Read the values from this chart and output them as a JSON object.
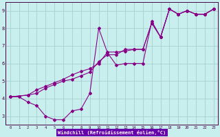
{
  "xlabel": "Windchill (Refroidissement éolien,°C)",
  "bg_color": "#c8eeee",
  "grid_color": "#a8d0d0",
  "line_color": "#880088",
  "xlim": [
    -0.5,
    23.5
  ],
  "ylim": [
    2.5,
    9.5
  ],
  "xticks": [
    0,
    1,
    2,
    3,
    4,
    5,
    6,
    7,
    8,
    9,
    10,
    11,
    12,
    13,
    14,
    15,
    16,
    17,
    18,
    19,
    20,
    21,
    22,
    23
  ],
  "yticks": [
    3,
    4,
    5,
    6,
    7,
    8,
    9
  ],
  "line1_x": [
    0,
    1,
    2,
    3,
    4,
    5,
    6,
    7,
    8,
    9,
    10,
    11,
    12,
    13,
    14,
    15,
    16,
    17,
    18,
    19,
    20,
    21,
    22,
    23
  ],
  "line1_y": [
    4.1,
    4.1,
    3.8,
    3.6,
    3.0,
    2.8,
    2.8,
    3.3,
    3.4,
    4.3,
    8.0,
    6.6,
    5.9,
    6.0,
    6.0,
    6.0,
    8.4,
    7.5,
    9.1,
    8.8,
    9.0,
    8.8,
    8.8,
    9.1
  ],
  "line2_x": [
    0,
    2,
    3,
    4,
    5,
    6,
    7,
    8,
    9,
    10,
    11,
    12,
    13,
    14,
    15,
    16,
    17,
    18,
    19,
    20,
    21,
    22,
    23
  ],
  "line2_y": [
    4.1,
    4.2,
    4.3,
    4.6,
    4.8,
    5.0,
    5.1,
    5.3,
    5.5,
    6.1,
    6.5,
    6.5,
    6.8,
    6.8,
    6.8,
    8.3,
    7.5,
    9.1,
    8.8,
    9.0,
    8.8,
    8.8,
    9.1
  ],
  "line3_x": [
    0,
    2,
    3,
    4,
    5,
    6,
    7,
    8,
    9,
    10,
    11,
    12,
    13,
    14,
    15,
    16,
    17,
    18,
    19,
    20,
    21,
    22,
    23
  ],
  "line3_y": [
    4.1,
    4.2,
    4.5,
    4.7,
    4.9,
    5.1,
    5.35,
    5.55,
    5.7,
    6.0,
    6.65,
    6.65,
    6.7,
    6.8,
    6.8,
    8.3,
    7.5,
    9.1,
    8.8,
    9.0,
    8.8,
    8.8,
    9.1
  ],
  "marker": "D",
  "markersize": 2.0,
  "linewidth": 0.8,
  "xlabel_color": "#440044",
  "tick_color": "#440044",
  "spine_color": "#440044"
}
